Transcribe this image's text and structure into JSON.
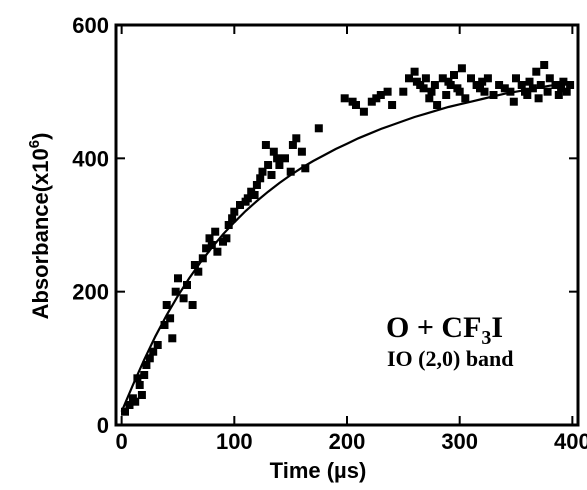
{
  "chart_data": {
    "type": "scatter",
    "title": "",
    "xlabel": "Time (µs)",
    "ylabel_base": "Absorbance(x10",
    "ylabel_exp": "6",
    "ylabel_close": ")",
    "xlim": [
      -5,
      405
    ],
    "ylim": [
      0,
      600
    ],
    "x_ticks": [
      0,
      100,
      200,
      300,
      400
    ],
    "y_ticks": [
      0,
      200,
      400,
      600
    ],
    "grid": false,
    "annotation": {
      "line1_pre": "O + CF",
      "line1_sub": "3",
      "line1_post": "I",
      "line2": "IO (2,0) band"
    },
    "series": [
      {
        "type": "scatter",
        "marker": "square",
        "color": "#000000",
        "x": [
          3,
          7,
          10,
          12,
          14,
          16,
          18,
          20,
          22,
          25,
          28,
          32,
          38,
          40,
          43,
          45,
          48,
          50,
          55,
          58,
          63,
          65,
          68,
          72,
          75,
          78,
          80,
          83,
          85,
          90,
          93,
          95,
          98,
          100,
          105,
          110,
          112,
          115,
          118,
          120,
          123,
          125,
          128,
          130,
          133,
          135,
          138,
          140,
          145,
          150,
          152,
          155,
          160,
          163,
          175,
          198,
          205,
          208,
          215,
          222,
          226,
          230,
          236,
          240,
          250,
          255,
          260,
          262,
          265,
          268,
          270,
          273,
          275,
          278,
          280,
          285,
          288,
          290,
          292,
          295,
          298,
          300,
          302,
          305,
          310,
          315,
          318,
          320,
          322,
          325,
          330,
          335,
          340,
          345,
          348,
          350,
          355,
          358,
          360,
          362,
          365,
          368,
          370,
          372,
          375,
          378,
          380,
          385,
          388,
          390,
          392,
          395,
          398
        ],
        "y": [
          20,
          30,
          40,
          35,
          70,
          60,
          45,
          75,
          90,
          100,
          110,
          120,
          150,
          180,
          160,
          130,
          200,
          220,
          190,
          210,
          180,
          240,
          230,
          250,
          265,
          280,
          270,
          290,
          260,
          275,
          280,
          300,
          310,
          320,
          330,
          335,
          340,
          350,
          345,
          360,
          370,
          380,
          420,
          390,
          375,
          410,
          400,
          390,
          400,
          380,
          420,
          430,
          410,
          385,
          445,
          490,
          485,
          480,
          470,
          485,
          490,
          495,
          500,
          480,
          500,
          520,
          530,
          515,
          510,
          505,
          520,
          490,
          500,
          510,
          480,
          520,
          495,
          515,
          510,
          525,
          505,
          500,
          535,
          490,
          520,
          510,
          505,
          515,
          500,
          520,
          495,
          510,
          505,
          500,
          485,
          520,
          510,
          500,
          495,
          515,
          505,
          530,
          490,
          510,
          540,
          500,
          520,
          510,
          495,
          505,
          515,
          500,
          510
        ]
      },
      {
        "type": "line",
        "color": "#000000",
        "x": [
          0,
          10,
          20,
          30,
          40,
          50,
          60,
          70,
          80,
          90,
          100,
          110,
          120,
          130,
          140,
          150,
          160,
          170,
          180,
          190,
          200,
          210,
          220,
          230,
          240,
          250,
          260,
          270,
          280,
          290,
          300,
          310,
          320,
          330,
          340,
          350,
          360,
          370,
          380,
          390,
          400
        ],
        "y": [
          20,
          60,
          98,
          133,
          165,
          194,
          220,
          244,
          266,
          286,
          304,
          321,
          336,
          350,
          363,
          375,
          386,
          396,
          405,
          414,
          422,
          430,
          437,
          444,
          450,
          456,
          462,
          467,
          472,
          477,
          481,
          485,
          489,
          493,
          497,
          500,
          503,
          506,
          509,
          511,
          513
        ]
      }
    ]
  }
}
